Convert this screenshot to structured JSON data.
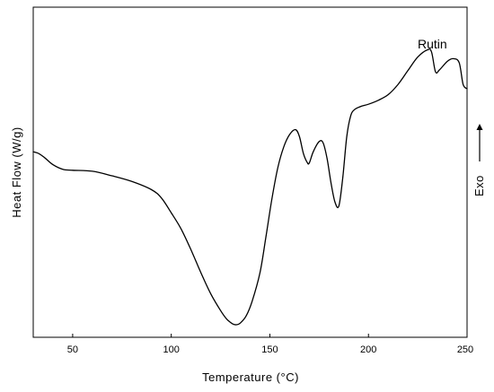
{
  "chart_data": {
    "type": "line",
    "title": "",
    "xlabel": "Temperature (°C)",
    "ylabel": "Heat Flow (W/g)",
    "xlim": [
      30,
      250
    ],
    "ylim": [
      0,
      100
    ],
    "xticks": [
      50,
      100,
      150,
      200,
      250
    ],
    "xtick_labels": [
      "50",
      "100",
      "150",
      "200",
      "250"
    ],
    "y_ticks_labeled": false,
    "grid": false,
    "series": [
      {
        "name": "Rutin",
        "x": [
          30,
          33,
          36,
          40,
          45,
          50,
          60,
          70,
          80,
          90,
          95,
          100,
          105,
          110,
          115,
          120,
          125,
          128,
          131,
          133,
          135,
          138,
          141,
          145,
          148,
          151,
          154,
          157,
          160,
          163,
          165,
          167,
          169,
          170,
          172,
          175,
          177,
          179,
          181,
          183,
          185,
          187,
          189,
          191,
          193,
          196,
          200,
          205,
          210,
          215,
          220,
          225,
          230,
          232,
          234,
          236,
          240,
          243,
          246,
          248,
          250
        ],
        "y": [
          56.2,
          55.6,
          54.3,
          52.3,
          50.9,
          50.6,
          50.3,
          48.9,
          47.2,
          44.7,
          42.2,
          37.7,
          32.8,
          26.5,
          19.6,
          13.2,
          8.1,
          5.6,
          4.1,
          3.8,
          4.3,
          6.5,
          10.9,
          19.6,
          30.4,
          41.8,
          51.3,
          57.6,
          61.4,
          62.9,
          60.8,
          55.7,
          52.9,
          52.8,
          56.2,
          59.3,
          58.9,
          54.2,
          46.8,
          41.0,
          39.8,
          48.5,
          60.8,
          67.1,
          69.0,
          69.9,
          70.6,
          71.8,
          73.5,
          76.6,
          80.8,
          84.9,
          87.1,
          86.4,
          80.4,
          81.0,
          83.6,
          84.4,
          83.2,
          76.6,
          75.3
        ]
      }
    ],
    "annotations": {
      "sample_label": "Rutin",
      "exo_label": "Exo"
    },
    "colors": {
      "line": "#000000",
      "axes": "#000000",
      "background": "#ffffff"
    }
  }
}
